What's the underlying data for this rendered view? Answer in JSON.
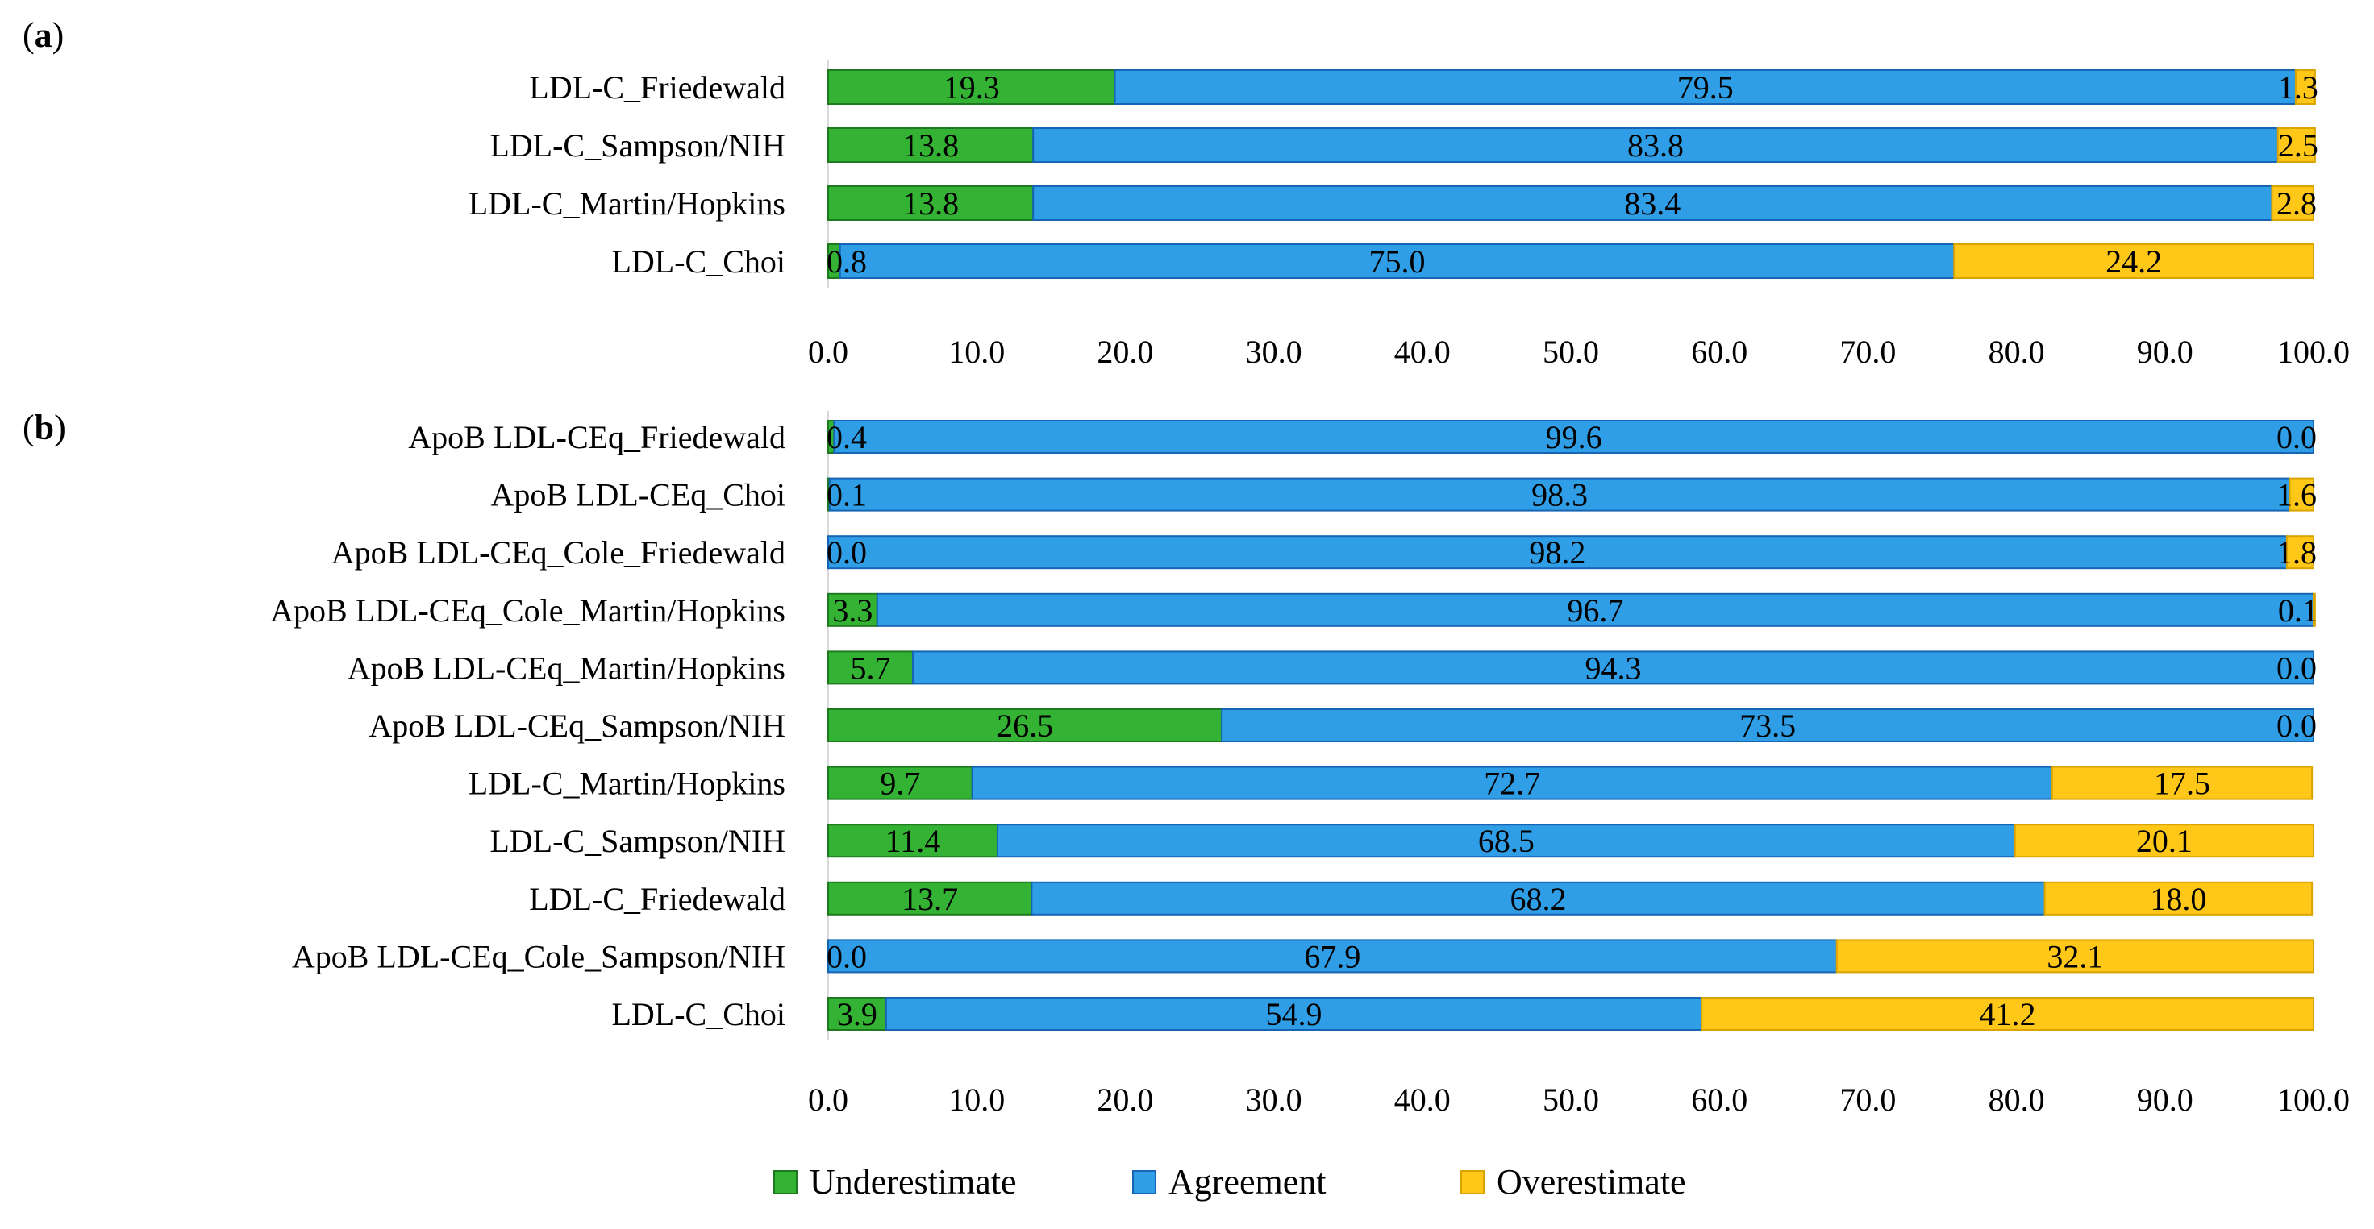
{
  "chart_data": [
    {
      "type": "bar",
      "orientation": "horizontal",
      "stacked": true,
      "panel_label_open": "(",
      "panel_label_letter": "a",
      "panel_label_close": ")",
      "categories": [
        "LDL-C_Friedewald",
        "LDL-C_Sampson/NIH",
        "LDL-C_Martin/Hopkins",
        "LDL-C_Choi"
      ],
      "series": [
        {
          "name": "Underestimate",
          "values": [
            19.3,
            13.8,
            13.8,
            0.8
          ]
        },
        {
          "name": "Agreement",
          "values": [
            79.5,
            83.8,
            83.4,
            75.0
          ]
        },
        {
          "name": "Overestimate",
          "values": [
            1.3,
            2.5,
            2.8,
            24.2
          ]
        }
      ],
      "xlim": [
        0,
        100
      ],
      "xticks": [
        "0.0",
        "10.0",
        "20.0",
        "30.0",
        "40.0",
        "50.0",
        "60.0",
        "70.0",
        "80.0",
        "90.0",
        "100.0"
      ],
      "grid": false
    },
    {
      "type": "bar",
      "orientation": "horizontal",
      "stacked": true,
      "panel_label_open": "(",
      "panel_label_letter": "b",
      "panel_label_close": ")",
      "categories": [
        "ApoB LDL-CEq_Friedewald",
        "ApoB LDL-CEq_Choi",
        "ApoB LDL-CEq_Cole_Friedewald",
        "ApoB LDL-CEq_Cole_Martin/Hopkins",
        "ApoB LDL-CEq_Martin/Hopkins",
        "ApoB LDL-CEq_Sampson/NIH",
        "LDL-C_Martin/Hopkins",
        "LDL-C_Sampson/NIH",
        "LDL-C_Friedewald",
        "ApoB LDL-CEq_Cole_Sampson/NIH",
        "LDL-C_Choi"
      ],
      "series": [
        {
          "name": "Underestimate",
          "values": [
            0.4,
            0.1,
            0.0,
            3.3,
            5.7,
            26.5,
            9.7,
            11.4,
            13.7,
            0.0,
            3.9
          ]
        },
        {
          "name": "Agreement",
          "values": [
            99.6,
            98.3,
            98.2,
            96.7,
            94.3,
            73.5,
            72.7,
            68.5,
            68.2,
            67.9,
            54.9
          ]
        },
        {
          "name": "Overestimate",
          "values": [
            0.0,
            1.6,
            1.8,
            0.1,
            0.0,
            0.0,
            17.5,
            20.1,
            18.0,
            32.1,
            41.2
          ]
        }
      ],
      "xlim": [
        0,
        100
      ],
      "xticks": [
        "0.0",
        "10.0",
        "20.0",
        "30.0",
        "40.0",
        "50.0",
        "60.0",
        "70.0",
        "80.0",
        "90.0",
        "100.0"
      ],
      "grid": false
    }
  ],
  "legend": {
    "placement": "bottom-center",
    "items": [
      {
        "label": "Underestimate",
        "color": "#33b233"
      },
      {
        "label": "Agreement",
        "color": "#2f9ee6"
      },
      {
        "label": "Overestimate",
        "color": "#ffc718"
      }
    ]
  },
  "colors": {
    "underestimate": "#33b233",
    "underestimate_border": "#1f7a1f",
    "agreement": "#2f9ee6",
    "agreement_border": "#1665b5",
    "overestimate": "#ffc718",
    "overestimate_border": "#d9a300"
  }
}
